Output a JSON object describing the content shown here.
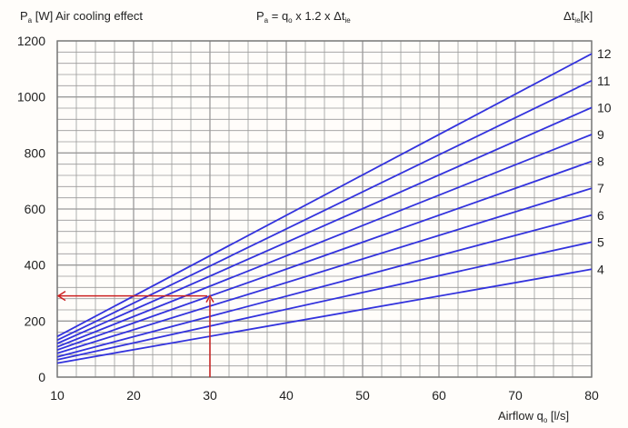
{
  "chart_data": {
    "type": "line",
    "title_left": {
      "symbol": "P",
      "sub": "a",
      "rest": " [W] Air cooling effect"
    },
    "formula": {
      "p": "P",
      "p_sub": "a",
      "mid": " = q",
      "q_sub": "o",
      "rest": " x 1.2 x  Δt",
      "dt_sub": "ie"
    },
    "legend_title": {
      "main": "Δt",
      "sub": "ie",
      "rest": "[k]"
    },
    "xlabel": {
      "main": "Airflow q",
      "sub": "o",
      "rest": " [l/s]"
    },
    "x": [
      10,
      80
    ],
    "xlim": [
      10,
      80
    ],
    "ylim": [
      0,
      1200
    ],
    "x_ticks": [
      "10",
      "20",
      "30",
      "40",
      "50",
      "60",
      "70",
      "80"
    ],
    "y_ticks": [
      "0",
      "200",
      "400",
      "600",
      "800",
      "1000",
      "1200"
    ],
    "grid": true,
    "series": [
      {
        "name": "4",
        "values": [
          50,
          385
        ]
      },
      {
        "name": "5",
        "values": [
          62,
          482
        ]
      },
      {
        "name": "6",
        "values": [
          72,
          578
        ]
      },
      {
        "name": "7",
        "values": [
          85,
          674
        ]
      },
      {
        "name": "8",
        "values": [
          97,
          770
        ]
      },
      {
        "name": "9",
        "values": [
          108,
          866
        ]
      },
      {
        "name": "10",
        "values": [
          120,
          962
        ]
      },
      {
        "name": "11",
        "values": [
          132,
          1058
        ]
      },
      {
        "name": "12",
        "values": [
          145,
          1154
        ]
      }
    ],
    "annotation_arrow": {
      "x": 30,
      "y": 290,
      "x_from": 10
    },
    "colors": {
      "line": "#3333dd",
      "arrow": "#cc2222",
      "grid": "#9a9a9a"
    }
  }
}
